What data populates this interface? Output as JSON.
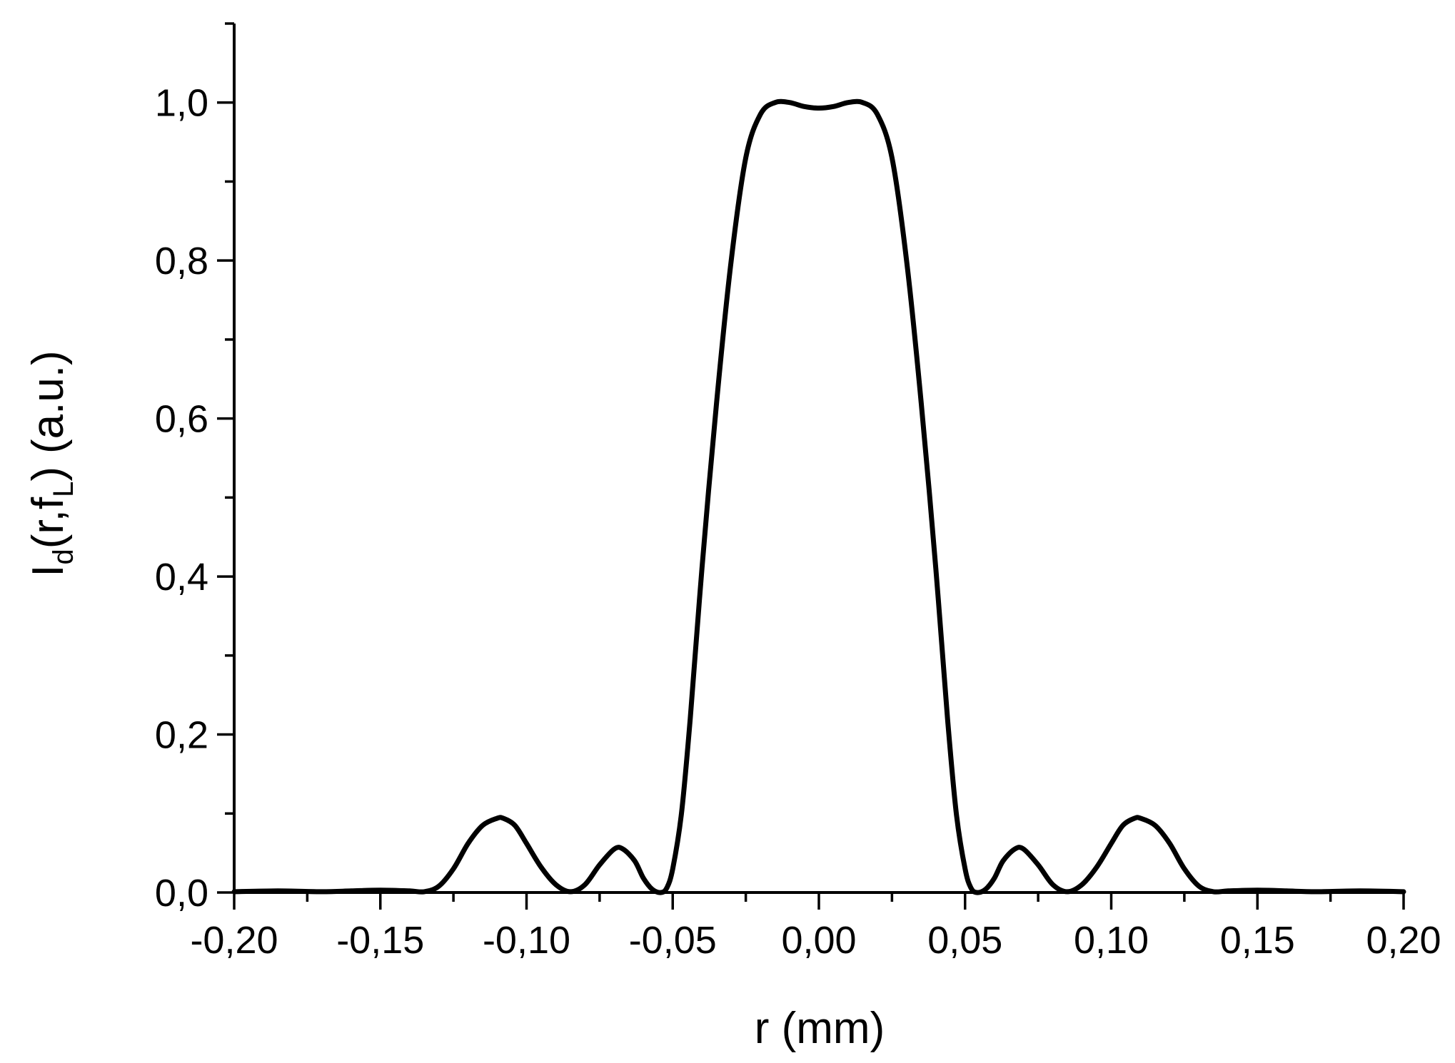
{
  "chart_data": {
    "type": "line",
    "title": "",
    "xlabel": "r (mm)",
    "ylabel": {
      "base": "I",
      "base_sub": "d",
      "args_open": "(r,f",
      "args_sub": "L",
      "args_close": ")",
      "units": "(a.u.)"
    },
    "xlim": [
      -0.2,
      0.2
    ],
    "ylim": [
      0,
      1.1
    ],
    "x_ticks": [
      -0.2,
      -0.15,
      -0.1,
      -0.05,
      0.0,
      0.05,
      0.1,
      0.15,
      0.2
    ],
    "x_tick_labels": [
      "-0,20",
      "-0,15",
      "-0,10",
      "-0,05",
      "0,00",
      "0,05",
      "0,10",
      "0,15",
      "0,20"
    ],
    "x_minor_ticks": [
      -0.175,
      -0.125,
      -0.075,
      -0.025,
      0.025,
      0.075,
      0.125,
      0.175
    ],
    "y_ticks": [
      0.0,
      0.2,
      0.4,
      0.6,
      0.8,
      1.0
    ],
    "y_tick_labels": [
      "0,0",
      "0,2",
      "0,4",
      "0,6",
      "0,8",
      "1,0"
    ],
    "y_minor_ticks": [
      0.1,
      0.3,
      0.5,
      0.7,
      0.9,
      1.1
    ],
    "grid": false,
    "legend": "none",
    "line_color": "#000000",
    "series": [
      {
        "x": [
          -0.2,
          -0.185,
          -0.17,
          -0.16,
          -0.15,
          -0.14,
          -0.135,
          -0.13,
          -0.125,
          -0.12,
          -0.115,
          -0.11,
          -0.108,
          -0.104,
          -0.1,
          -0.095,
          -0.09,
          -0.085,
          -0.08,
          -0.075,
          -0.07,
          -0.067,
          -0.063,
          -0.06,
          -0.057,
          -0.054,
          -0.052,
          -0.05,
          -0.047,
          -0.044,
          -0.04,
          -0.035,
          -0.03,
          -0.025,
          -0.02,
          -0.015,
          -0.01,
          -0.005,
          0.0,
          0.005,
          0.01,
          0.015,
          0.02,
          0.025,
          0.03,
          0.035,
          0.04,
          0.044,
          0.047,
          0.05,
          0.052,
          0.054,
          0.057,
          0.06,
          0.063,
          0.067,
          0.07,
          0.075,
          0.08,
          0.085,
          0.09,
          0.095,
          0.1,
          0.104,
          0.108,
          0.11,
          0.115,
          0.12,
          0.125,
          0.13,
          0.135,
          0.14,
          0.15,
          0.16,
          0.17,
          0.185,
          0.2
        ],
        "y": [
          0.001,
          0.002,
          0.001,
          0.002,
          0.003,
          0.002,
          0.001,
          0.008,
          0.03,
          0.062,
          0.085,
          0.094,
          0.094,
          0.085,
          0.062,
          0.032,
          0.01,
          0.001,
          0.01,
          0.035,
          0.055,
          0.055,
          0.04,
          0.018,
          0.004,
          0.0,
          0.006,
          0.03,
          0.1,
          0.22,
          0.41,
          0.62,
          0.8,
          0.93,
          0.985,
          1.0,
          1.0,
          0.995,
          0.993,
          0.995,
          1.0,
          1.0,
          0.985,
          0.93,
          0.8,
          0.62,
          0.41,
          0.22,
          0.1,
          0.03,
          0.006,
          0.0,
          0.004,
          0.018,
          0.04,
          0.055,
          0.055,
          0.035,
          0.01,
          0.001,
          0.01,
          0.032,
          0.062,
          0.085,
          0.094,
          0.094,
          0.085,
          0.062,
          0.03,
          0.008,
          0.001,
          0.002,
          0.003,
          0.002,
          0.001,
          0.002,
          0.001
        ]
      }
    ]
  }
}
